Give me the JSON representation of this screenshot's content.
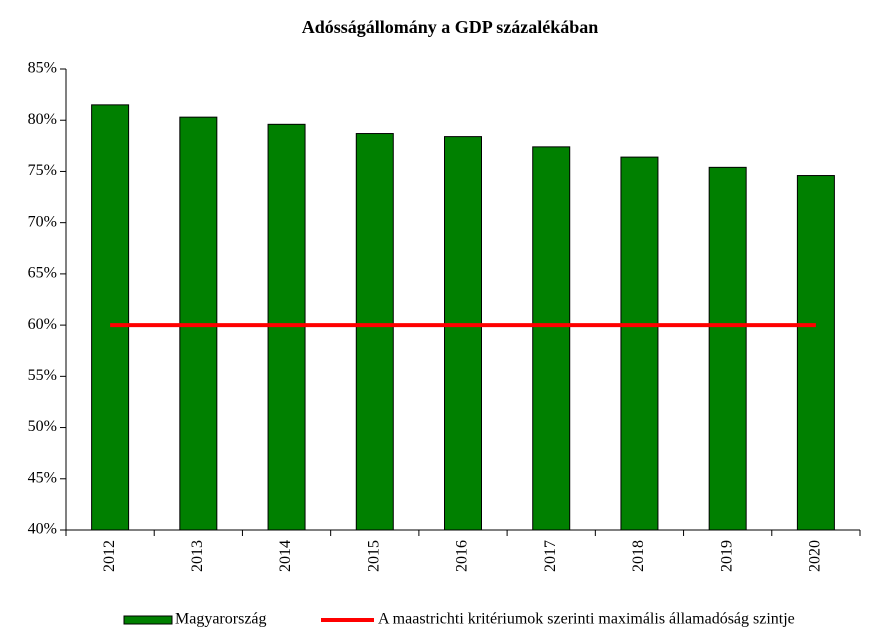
{
  "chart_data": {
    "type": "bar",
    "title": "Adósságállomány a GDP százalékában",
    "categories": [
      "2012",
      "2013",
      "2014",
      "2015",
      "2016",
      "2017",
      "2018",
      "2019",
      "2020"
    ],
    "series": [
      {
        "name": "Magyarország",
        "type": "bar",
        "color": "#008000",
        "values": [
          81.5,
          80.3,
          79.6,
          78.7,
          78.4,
          77.4,
          76.4,
          75.4,
          74.6
        ]
      },
      {
        "name": "A maastrichti kritériumok szerinti maximális államadóság szintje",
        "type": "line",
        "color": "#ff0000",
        "values": [
          60,
          60,
          60,
          60,
          60,
          60,
          60,
          60,
          60
        ]
      }
    ],
    "ylim": [
      40,
      85
    ],
    "yticks": [
      {
        "value": 40,
        "label": "40%"
      },
      {
        "value": 45,
        "label": "45%"
      },
      {
        "value": 50,
        "label": "50%"
      },
      {
        "value": 55,
        "label": "55%"
      },
      {
        "value": 60,
        "label": "60%"
      },
      {
        "value": 65,
        "label": "65%"
      },
      {
        "value": 70,
        "label": "70%"
      },
      {
        "value": 75,
        "label": "75%"
      },
      {
        "value": 80,
        "label": "80%"
      },
      {
        "value": 85,
        "label": "85%"
      }
    ],
    "grid": false,
    "legend": "bottom"
  }
}
